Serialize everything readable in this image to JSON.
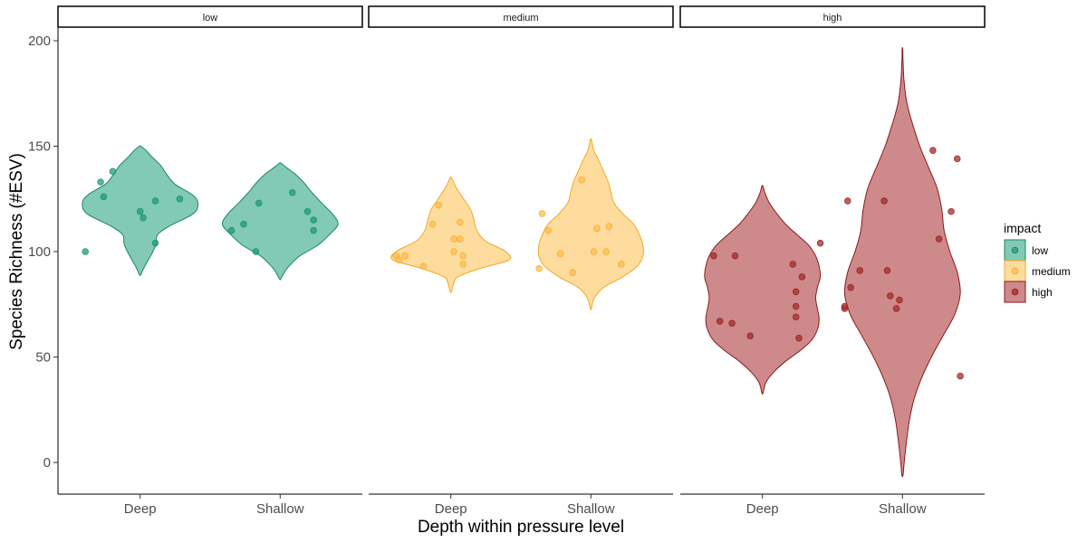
{
  "chart_data": {
    "type": "violin",
    "facets": [
      "low",
      "medium",
      "high"
    ],
    "categories": [
      "Deep",
      "Shallow"
    ],
    "ylabel": "Species Richness (#ESV)",
    "xlabel": "Depth within pressure level",
    "ylim": [
      -15,
      206
    ],
    "yticks": [
      0,
      50,
      100,
      150,
      200
    ],
    "grid": false,
    "legend": {
      "title": "impact",
      "position": "right",
      "entries": [
        "low",
        "medium",
        "high"
      ]
    },
    "colors": {
      "low": {
        "fill": "#1b9e77",
        "stroke": "#17876a"
      },
      "medium": {
        "fill": "#fdbf4f",
        "stroke": "#f5a623"
      },
      "high": {
        "fill": "#a52a2a",
        "stroke": "#8b1a1a"
      }
    },
    "series": [
      {
        "impact": "low",
        "depth": "Deep",
        "points": [
          [
            -0.18,
            100
          ],
          [
            -0.12,
            126
          ],
          [
            -0.13,
            133
          ],
          [
            -0.09,
            138
          ],
          [
            0,
            119
          ],
          [
            0.01,
            116
          ],
          [
            0.05,
            124
          ],
          [
            0.05,
            104
          ],
          [
            0.13,
            125
          ]
        ],
        "profile": [
          [
            89,
            0.01
          ],
          [
            92,
            0.06
          ],
          [
            95,
            0.12
          ],
          [
            100,
            0.22
          ],
          [
            104,
            0.28
          ],
          [
            108,
            0.3
          ],
          [
            112,
            0.5
          ],
          [
            118,
            0.92
          ],
          [
            123,
            1
          ],
          [
            127,
            0.9
          ],
          [
            132,
            0.6
          ],
          [
            137,
            0.45
          ],
          [
            141,
            0.35
          ],
          [
            145,
            0.2
          ],
          [
            148,
            0.1
          ],
          [
            150,
            0.01
          ]
        ]
      },
      {
        "impact": "low",
        "depth": "Shallow",
        "points": [
          [
            -0.16,
            110
          ],
          [
            -0.12,
            113
          ],
          [
            -0.08,
            100
          ],
          [
            -0.07,
            123
          ],
          [
            0.04,
            128
          ],
          [
            0.09,
            119
          ],
          [
            0.11,
            115
          ],
          [
            0.11,
            110
          ]
        ],
        "profile": [
          [
            87,
            0.01
          ],
          [
            90,
            0.07
          ],
          [
            93,
            0.15
          ],
          [
            98,
            0.34
          ],
          [
            103,
            0.65
          ],
          [
            108,
            0.85
          ],
          [
            113,
            1
          ],
          [
            118,
            0.9
          ],
          [
            123,
            0.72
          ],
          [
            128,
            0.55
          ],
          [
            133,
            0.4
          ],
          [
            137,
            0.25
          ],
          [
            140,
            0.1
          ],
          [
            142,
            0.01
          ]
        ]
      },
      {
        "impact": "medium",
        "depth": "Deep",
        "points": [
          [
            -0.18,
            98
          ],
          [
            -0.17,
            96
          ],
          [
            -0.15,
            98
          ],
          [
            -0.09,
            93
          ],
          [
            -0.06,
            113
          ],
          [
            -0.04,
            122
          ],
          [
            0.01,
            106
          ],
          [
            0.01,
            100
          ],
          [
            0.03,
            114
          ],
          [
            0.03,
            106
          ],
          [
            0.04,
            98
          ],
          [
            0.04,
            94
          ]
        ],
        "profile": [
          [
            81,
            0.01
          ],
          [
            85,
            0.05
          ],
          [
            88,
            0.12
          ],
          [
            92,
            0.5
          ],
          [
            96,
            1
          ],
          [
            100,
            0.95
          ],
          [
            105,
            0.6
          ],
          [
            110,
            0.45
          ],
          [
            115,
            0.4
          ],
          [
            120,
            0.34
          ],
          [
            125,
            0.22
          ],
          [
            130,
            0.1
          ],
          [
            135,
            0.01
          ]
        ]
      },
      {
        "impact": "medium",
        "depth": "Shallow",
        "points": [
          [
            -0.17,
            92
          ],
          [
            -0.16,
            118
          ],
          [
            -0.14,
            110
          ],
          [
            -0.1,
            99
          ],
          [
            -0.06,
            90
          ],
          [
            -0.03,
            134
          ],
          [
            0.01,
            100
          ],
          [
            0.02,
            111
          ],
          [
            0.05,
            100
          ],
          [
            0.06,
            112
          ],
          [
            0.1,
            94
          ]
        ],
        "profile": [
          [
            73,
            0.01
          ],
          [
            78,
            0.06
          ],
          [
            83,
            0.22
          ],
          [
            88,
            0.55
          ],
          [
            93,
            0.8
          ],
          [
            98,
            0.9
          ],
          [
            103,
            0.9
          ],
          [
            108,
            0.84
          ],
          [
            113,
            0.74
          ],
          [
            118,
            0.55
          ],
          [
            123,
            0.4
          ],
          [
            128,
            0.35
          ],
          [
            133,
            0.3
          ],
          [
            138,
            0.22
          ],
          [
            143,
            0.14
          ],
          [
            148,
            0.05
          ],
          [
            153,
            0.01
          ]
        ]
      },
      {
        "impact": "high",
        "depth": "Deep",
        "points": [
          [
            -0.16,
            98
          ],
          [
            -0.14,
            67
          ],
          [
            -0.1,
            66
          ],
          [
            -0.09,
            98
          ],
          [
            -0.04,
            60
          ],
          [
            0.1,
            94
          ],
          [
            0.11,
            81
          ],
          [
            0.11,
            74
          ],
          [
            0.11,
            69
          ],
          [
            0.12,
            59
          ],
          [
            0.13,
            88
          ],
          [
            0.19,
            104
          ]
        ],
        "profile": [
          [
            33,
            0.01
          ],
          [
            38,
            0.06
          ],
          [
            43,
            0.2
          ],
          [
            48,
            0.4
          ],
          [
            53,
            0.65
          ],
          [
            58,
            0.85
          ],
          [
            63,
            0.95
          ],
          [
            68,
            0.98
          ],
          [
            73,
            0.95
          ],
          [
            78,
            0.92
          ],
          [
            83,
            0.95
          ],
          [
            88,
            1
          ],
          [
            93,
            0.98
          ],
          [
            98,
            0.92
          ],
          [
            103,
            0.8
          ],
          [
            108,
            0.6
          ],
          [
            113,
            0.4
          ],
          [
            118,
            0.25
          ],
          [
            123,
            0.12
          ],
          [
            128,
            0.04
          ],
          [
            131,
            0.01
          ]
        ]
      },
      {
        "impact": "high",
        "depth": "Shallow",
        "points": [
          [
            -0.19,
            73
          ],
          [
            -0.19,
            74
          ],
          [
            -0.18,
            124
          ],
          [
            -0.17,
            83
          ],
          [
            -0.14,
            91
          ],
          [
            -0.06,
            124
          ],
          [
            -0.05,
            91
          ],
          [
            -0.04,
            79
          ],
          [
            -0.02,
            73
          ],
          [
            -0.01,
            77
          ],
          [
            0.1,
            148
          ],
          [
            0.12,
            106
          ],
          [
            0.16,
            119
          ],
          [
            0.18,
            144
          ],
          [
            0.19,
            41
          ]
        ],
        "profile": [
          [
            -6,
            0.01
          ],
          [
            0,
            0.03
          ],
          [
            10,
            0.07
          ],
          [
            20,
            0.12
          ],
          [
            30,
            0.2
          ],
          [
            40,
            0.33
          ],
          [
            50,
            0.5
          ],
          [
            60,
            0.7
          ],
          [
            70,
            0.9
          ],
          [
            80,
            1
          ],
          [
            90,
            0.95
          ],
          [
            100,
            0.82
          ],
          [
            110,
            0.72
          ],
          [
            120,
            0.68
          ],
          [
            130,
            0.6
          ],
          [
            140,
            0.45
          ],
          [
            150,
            0.3
          ],
          [
            160,
            0.18
          ],
          [
            170,
            0.08
          ],
          [
            180,
            0.03
          ],
          [
            190,
            0.01
          ],
          [
            196,
            0.005
          ]
        ]
      }
    ]
  }
}
